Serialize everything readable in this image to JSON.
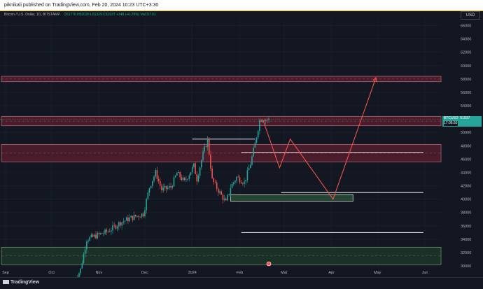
{
  "header": {
    "publish_text": "piknikali published on TradingView.com, Feb 20, 2024 10:23 UTC+3:30"
  },
  "symbol_info": {
    "name": "Bitcoin / U.S. Dollar, 1D, BITSTAMP",
    "ohlc": "O51776 H52028 L51329 C51937 +148 (+0.29%) Vol157.51"
  },
  "currency": "USD",
  "price_tag": {
    "symbol": "BTCUSD",
    "price": "51937",
    "countdown": "17:06:50"
  },
  "branding": {
    "logo_text": "TradingView"
  },
  "colors": {
    "background": "#131722",
    "up": "#26a69a",
    "down": "#ef5350",
    "resistance_zone": "#5c1f2f",
    "support_zone": "#1f3a2a",
    "projection": "#ef5350",
    "level_line": "#ffffff"
  },
  "chart_data": {
    "type": "candlestick",
    "title": "Bitcoin / U.S. Dollar, 1D, BITSTAMP",
    "y_axis": {
      "ticks": [
        66000,
        64000,
        62000,
        60000,
        58000,
        56000,
        54000,
        52000,
        50000,
        48000,
        46000,
        44000,
        42000,
        40000,
        38000,
        36000,
        34000,
        32000,
        30000
      ],
      "tick_labels": [
        "66000",
        "64000",
        "62000",
        "60000",
        "58000",
        "56000",
        "54000",
        "52000",
        "50000",
        "48000",
        "46000",
        "44000",
        "42000",
        "40000",
        "38000",
        "36000",
        "34000",
        "32000",
        "30000"
      ],
      "range": [
        29800,
        67000
      ]
    },
    "x_axis": {
      "tick_labels": [
        "Sep",
        "Oct",
        "Nov",
        "Dec",
        "2024",
        "Feb",
        "Mar",
        "Apr",
        "May",
        "Jun"
      ],
      "tick_dates": [
        "2023-09-01",
        "2023-10-01",
        "2023-11-01",
        "2023-12-01",
        "2024-01-01",
        "2024-02-01",
        "2024-03-01",
        "2024-04-01",
        "2024-05-01",
        "2024-06-01"
      ]
    },
    "price_path": [
      [
        "2023-10-15",
        27000
      ],
      [
        "2023-10-20",
        29500
      ],
      [
        "2023-10-24",
        34000
      ],
      [
        "2023-10-31",
        34600
      ],
      [
        "2023-11-07",
        35200
      ],
      [
        "2023-11-15",
        36500
      ],
      [
        "2023-11-22",
        37200
      ],
      [
        "2023-11-30",
        37800
      ],
      [
        "2023-12-04",
        41800
      ],
      [
        "2023-12-08",
        44000
      ],
      [
        "2023-12-12",
        41400
      ],
      [
        "2023-12-18",
        41800
      ],
      [
        "2023-12-22",
        43900
      ],
      [
        "2023-12-27",
        42600
      ],
      [
        "2024-01-02",
        45000
      ],
      [
        "2024-01-04",
        43000
      ],
      [
        "2024-01-08",
        46800
      ],
      [
        "2024-01-11",
        48900
      ],
      [
        "2024-01-14",
        42900
      ],
      [
        "2024-01-18",
        41300
      ],
      [
        "2024-01-23",
        39500
      ],
      [
        "2024-01-26",
        41800
      ],
      [
        "2024-01-30",
        43300
      ],
      [
        "2024-02-04",
        42500
      ],
      [
        "2024-02-08",
        45300
      ],
      [
        "2024-02-11",
        48300
      ],
      [
        "2024-02-14",
        51800
      ],
      [
        "2024-02-16",
        52100
      ],
      [
        "2024-02-19",
        51900
      ],
      [
        "2024-02-20",
        51937
      ]
    ],
    "zones": [
      {
        "kind": "resistance",
        "from": 57600,
        "to": 58400
      },
      {
        "kind": "resistance",
        "from": 51000,
        "to": 52400
      },
      {
        "kind": "resistance",
        "from": 45600,
        "to": 48200
      },
      {
        "kind": "support",
        "from": 30200,
        "to": 32800
      }
    ],
    "support_box": {
      "x_from": "2024-01-26",
      "x_to": "2024-04-15",
      "from": 39700,
      "to": 40700
    },
    "level_lines": [
      {
        "value": 49000,
        "x_from": "2024-01-01",
        "x_to": "2024-02-11"
      },
      {
        "value": 47000,
        "x_from": "2024-02-02",
        "x_to": "2024-05-31"
      },
      {
        "value": 41000,
        "x_from": "2024-02-28",
        "x_to": "2024-05-31"
      },
      {
        "value": 35000,
        "x_from": "2024-02-02",
        "x_to": "2024-05-31"
      }
    ],
    "projection": [
      [
        "2024-02-16",
        52000
      ],
      [
        "2024-02-27",
        44700
      ],
      [
        "2024-03-05",
        49000
      ],
      [
        "2024-04-02",
        40000
      ],
      [
        "2024-04-30",
        58200
      ]
    ],
    "last_price": 51937
  }
}
